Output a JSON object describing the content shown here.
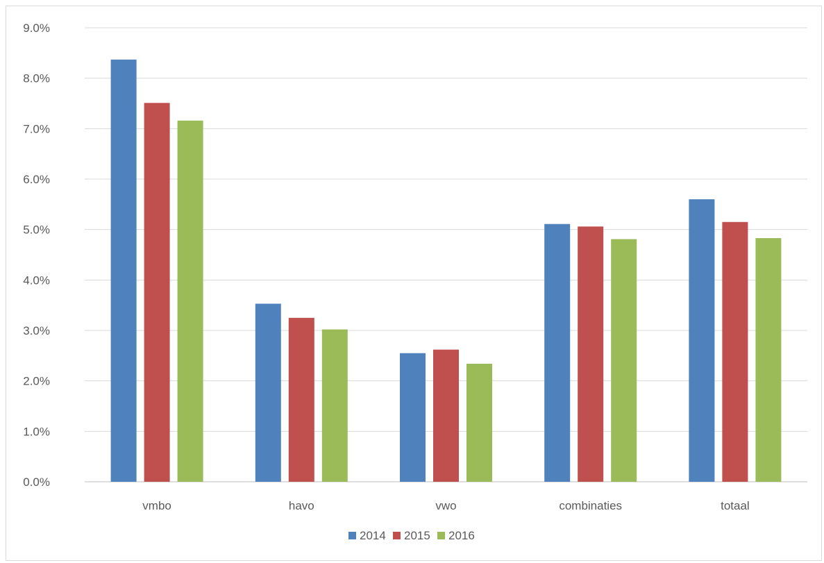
{
  "chart_data": {
    "type": "bar",
    "title": "",
    "xlabel": "",
    "ylabel": "",
    "categories": [
      "vmbo",
      "havo",
      "vwo",
      "combinaties",
      "totaal"
    ],
    "series": [
      {
        "name": "2014",
        "color": "#4f81bd",
        "values": [
          8.37,
          3.53,
          2.55,
          5.11,
          5.6
        ]
      },
      {
        "name": "2015",
        "color": "#c0504d",
        "values": [
          7.51,
          3.25,
          2.62,
          5.06,
          5.15
        ]
      },
      {
        "name": "2016",
        "color": "#9bbb59",
        "values": [
          7.16,
          3.02,
          2.34,
          4.81,
          4.83
        ]
      }
    ],
    "ylim": [
      0,
      9
    ],
    "yticks": [
      0,
      1,
      2,
      3,
      4,
      5,
      6,
      7,
      8,
      9
    ],
    "ytick_format": "percent-1-decimal",
    "grid": true,
    "legend_position": "bottom-center"
  }
}
